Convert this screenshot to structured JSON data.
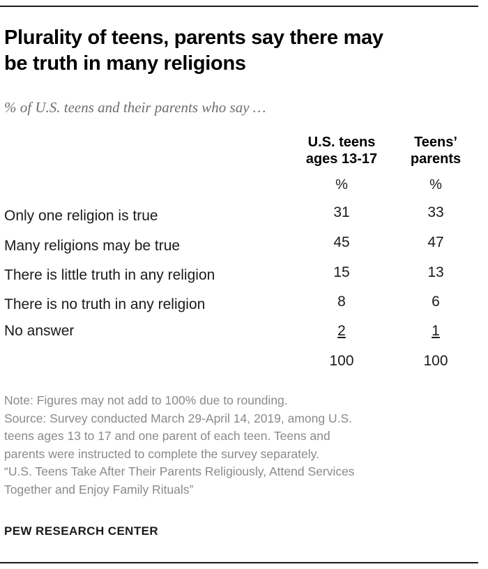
{
  "title_line1": "Plurality of teens, parents say there may",
  "title_line2": "be truth in many religions",
  "subtitle": "% of U.S. teens and their parents who say …",
  "columns": {
    "teens_line1": "U.S. teens",
    "teens_line2": "ages 13-17",
    "parents_line1": "Teens’",
    "parents_line2": "parents",
    "unit_teens": "%",
    "unit_parents": "%"
  },
  "rows": [
    {
      "label": "Only one religion is true",
      "teens": "31",
      "parents": "33"
    },
    {
      "label": "Many religions may be true",
      "teens": "45",
      "parents": "47"
    },
    {
      "label": "There is little truth in any religion",
      "teens": "15",
      "parents": "13"
    },
    {
      "label": "There is no truth in any religion",
      "teens": "8",
      "parents": "6"
    },
    {
      "label": "No answer",
      "teens": "2",
      "parents": "1"
    }
  ],
  "totals": {
    "teens": "100",
    "parents": "100"
  },
  "notes": {
    "note": "Note: Figures may not add to 100% due to rounding.",
    "source_line1": "Source: Survey conducted March 29-April 14, 2019, among U.S.",
    "source_line2": "teens ages 13 to 17 and one parent of each teen. Teens and",
    "source_line3": "parents were instructed to complete the survey separately.",
    "source_line4": "“U.S. Teens Take After Their Parents Religiously, Attend Services",
    "source_line5": "Together and Enjoy Family Rituals”"
  },
  "brand": "PEW RESEARCH CENTER",
  "chart_data": {
    "type": "table",
    "title": "Plurality of teens, parents say there may be truth in many religions",
    "subtitle": "% of U.S. teens and their parents who say …",
    "categories": [
      "Only one religion is true",
      "Many religions may be true",
      "There is little truth in any religion",
      "There is no truth in any religion",
      "No answer"
    ],
    "series": [
      {
        "name": "U.S. teens ages 13-17",
        "values": [
          31,
          45,
          15,
          8,
          2
        ],
        "total": 100
      },
      {
        "name": "Teens’ parents",
        "values": [
          33,
          47,
          13,
          6,
          1
        ],
        "total": 100
      }
    ],
    "unit": "%"
  }
}
